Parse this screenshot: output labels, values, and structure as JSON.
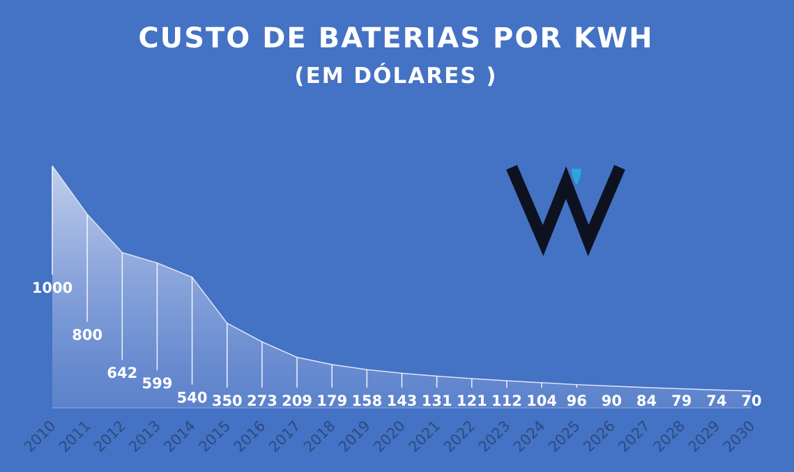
{
  "title": "CUSTO DE BATERIAS POR KWH",
  "subtitle": "(EM DÓLARES )",
  "colors": {
    "background": "#4472c4",
    "area_top": "#c9d4ef",
    "area_bottom": "#6f8fd2",
    "text": "#ffffff",
    "tick_text": "#2e4a80",
    "logo_dark": "#0d1220",
    "logo_accent": "#2aa8d8"
  },
  "logo": {
    "icon": "w-logo-icon"
  },
  "chart_data": {
    "type": "area",
    "title": "CUSTO DE BATERIAS POR KWH",
    "subtitle": "(EM DÓLARES )",
    "categories": [
      "2010",
      "2011",
      "2012",
      "2013",
      "2014",
      "2015",
      "2016",
      "2017",
      "2018",
      "2019",
      "2020",
      "2021",
      "2022",
      "2023",
      "2024",
      "2025",
      "2026",
      "2027",
      "2028",
      "2029",
      "2030"
    ],
    "values": [
      1000,
      800,
      642,
      599,
      540,
      350,
      273,
      209,
      179,
      158,
      143,
      131,
      121,
      112,
      104,
      96,
      90,
      84,
      79,
      74,
      70
    ],
    "ylim": [
      0,
      1000
    ],
    "grid": false,
    "legend": "none",
    "data_labels": true
  }
}
